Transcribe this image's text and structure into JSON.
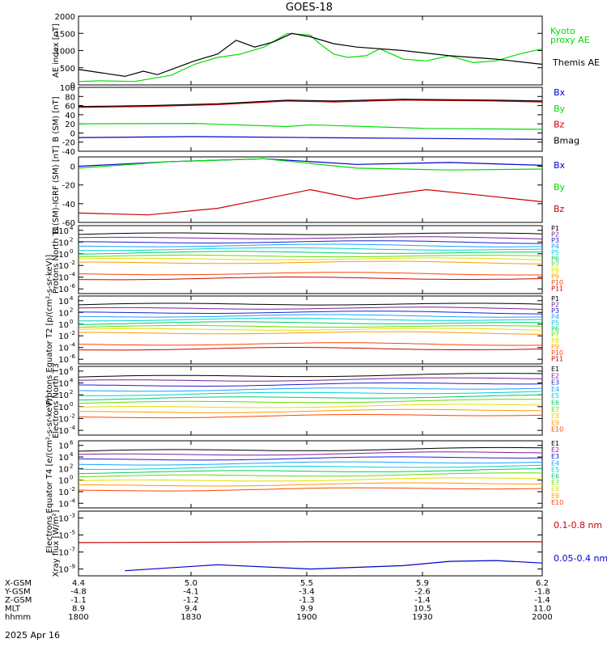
{
  "title": "GOES-18",
  "date_label": "2025 Apr 16",
  "colors": {
    "green": "#00dd00",
    "red": "#cc0000",
    "blue": "#0000cc",
    "black": "#000000",
    "rainbow11": [
      "#000000",
      "#7a1fa2",
      "#2020d0",
      "#1aa3ff",
      "#00d0d0",
      "#00cc66",
      "#66dd00",
      "#e0e000",
      "#ff9900",
      "#ff4400",
      "#cc0000"
    ]
  },
  "footer": {
    "rows": [
      {
        "label": "X-GSM",
        "values": [
          "4.4",
          "5.0",
          "5.5",
          "5.9",
          "6.2"
        ]
      },
      {
        "label": "Y-GSM",
        "values": [
          "-4.8",
          "-4.1",
          "-3.4",
          "-2.6",
          "-1.8"
        ]
      },
      {
        "label": "Z-GSM",
        "values": [
          "-1.1",
          "-1.2",
          "-1.3",
          "-1.4",
          "-1.4"
        ]
      },
      {
        "label": "MLT",
        "values": [
          "8.9",
          "9.4",
          "9.9",
          "10.5",
          "11.0"
        ]
      },
      {
        "label": "hhmm",
        "values": [
          "1800",
          "1830",
          "1900",
          "1930",
          "2000"
        ]
      }
    ]
  },
  "chart_data": [
    {
      "type": "line",
      "ylabel": "AE index [nT]",
      "ylim": [
        0,
        2000
      ],
      "yticks": [
        "0",
        "500",
        "1000",
        "1500",
        "2000"
      ],
      "x_range": [
        "1800",
        "2000"
      ],
      "legend": [
        "Kyoto proxy AE",
        "Themis AE"
      ],
      "series": [
        {
          "name": "Kyoto proxy AE",
          "color": "green",
          "x": [
            0,
            0.05,
            0.12,
            0.2,
            0.25,
            0.3,
            0.35,
            0.4,
            0.45,
            0.5,
            0.52,
            0.55,
            0.58,
            0.62,
            0.65,
            0.7,
            0.75,
            0.8,
            0.85,
            0.9,
            0.95,
            1.0
          ],
          "y": [
            100,
            120,
            100,
            280,
            600,
            800,
            900,
            1100,
            1500,
            1450,
            1200,
            900,
            800,
            850,
            1050,
            750,
            700,
            850,
            650,
            700,
            900,
            1050
          ]
        },
        {
          "name": "Themis AE",
          "color": "black",
          "x": [
            0,
            0.05,
            0.1,
            0.14,
            0.17,
            0.2,
            0.25,
            0.3,
            0.34,
            0.38,
            0.42,
            0.46,
            0.5,
            0.55,
            0.6,
            0.7,
            0.8,
            0.9,
            1.0
          ],
          "y": [
            450,
            350,
            250,
            400,
            300,
            450,
            700,
            900,
            1300,
            1100,
            1250,
            1500,
            1400,
            1200,
            1100,
            1000,
            850,
            750,
            600
          ]
        }
      ]
    },
    {
      "type": "line",
      "ylabel": "B (SM) [nT]",
      "ylim": [
        -40,
        100
      ],
      "yticks": [
        "-40",
        "-20",
        "0",
        "20",
        "40",
        "60",
        "80",
        "100"
      ],
      "legend": [
        "Bx",
        "By",
        "Bz",
        "Bmag"
      ],
      "series": [
        {
          "name": "Bx",
          "color": "blue",
          "x": [
            0,
            0.25,
            0.5,
            0.75,
            1.0
          ],
          "y": [
            -10,
            -8,
            -10,
            -12,
            -14
          ]
        },
        {
          "name": "By",
          "color": "green",
          "x": [
            0,
            0.25,
            0.45,
            0.5,
            0.75,
            1.0
          ],
          "y": [
            20,
            21,
            14,
            18,
            10,
            8
          ]
        },
        {
          "name": "Bz",
          "color": "red",
          "x": [
            0,
            0.15,
            0.3,
            0.45,
            0.55,
            0.7,
            0.9,
            1.0
          ],
          "y": [
            56,
            58,
            62,
            70,
            68,
            72,
            70,
            68
          ]
        },
        {
          "name": "Bmag",
          "color": "black",
          "x": [
            0,
            0.15,
            0.3,
            0.45,
            0.55,
            0.7,
            0.9,
            1.0
          ],
          "y": [
            58,
            60,
            64,
            72,
            70,
            74,
            72,
            70
          ]
        }
      ]
    },
    {
      "type": "line",
      "ylabel": "B (SM)-IGRF (SM) [nT]",
      "ylim": [
        -60,
        10
      ],
      "yticks": [
        "-60",
        "-40",
        "-20",
        "0"
      ],
      "legend": [
        "Bx",
        "By",
        "Bz"
      ],
      "series": [
        {
          "name": "Bx",
          "color": "blue",
          "x": [
            0,
            0.2,
            0.4,
            0.6,
            0.8,
            1.0
          ],
          "y": [
            0,
            5,
            8,
            2,
            4,
            1
          ]
        },
        {
          "name": "By",
          "color": "green",
          "x": [
            0,
            0.2,
            0.4,
            0.6,
            0.8,
            1.0
          ],
          "y": [
            -2,
            5,
            8,
            -2,
            -4,
            -3
          ]
        },
        {
          "name": "Bz",
          "color": "red",
          "x": [
            0,
            0.15,
            0.3,
            0.45,
            0.5,
            0.6,
            0.75,
            0.85,
            1.0
          ],
          "y": [
            -50,
            -52,
            -45,
            -30,
            -25,
            -35,
            -25,
            -30,
            -38
          ]
        }
      ]
    },
    {
      "type": "line",
      "ylabel": "Protons North T1",
      "yscale": "log",
      "yticks": [
        "10^4",
        "10^2",
        "10^0",
        "10^-2",
        "10^-4",
        "10^-6"
      ],
      "legend": [
        "P1",
        "P2",
        "P3",
        "P4",
        "P5",
        "P6",
        "P7",
        "P8",
        "P9",
        "P10",
        "P11"
      ],
      "series_levels_log10": [
        3.3,
        2.6,
        1.9,
        1.3,
        0.7,
        0.1,
        -0.5,
        -1.0,
        -1.6,
        -3.5,
        -4.3
      ]
    },
    {
      "type": "line",
      "ylabel": "Protons Equator T2 [p/(cm²-s-sr-keV)]",
      "yscale": "log",
      "yticks": [
        "10^4",
        "10^2",
        "10^0",
        "10^-2",
        "10^-4",
        "10^-6"
      ],
      "legend": [
        "P1",
        "P2",
        "P3",
        "P4",
        "P5",
        "P6",
        "P7",
        "P8",
        "P9",
        "P10",
        "P11"
      ],
      "series_levels_log10": [
        3.3,
        2.6,
        1.9,
        1.3,
        0.7,
        0.1,
        -0.5,
        -1.0,
        -1.6,
        -3.5,
        -4.3
      ]
    },
    {
      "type": "line",
      "ylabel": "Electrons North T3",
      "yscale": "log",
      "yticks": [
        "10^6",
        "10^4",
        "10^2",
        "10^0",
        "10^-2",
        "10^-4"
      ],
      "legend": [
        "E1",
        "E2",
        "E3",
        "E4",
        "E5",
        "E6",
        "E7",
        "E8",
        "E9",
        "E10"
      ],
      "series_levels_log10": [
        5.0,
        4.3,
        3.5,
        2.7,
        2.0,
        1.3,
        0.6,
        -0.2,
        -1.0,
        -1.8
      ]
    },
    {
      "type": "line",
      "ylabel": "Electrons Equator T4 [e/(cm²-s-sr-keV)]",
      "yscale": "log",
      "yticks": [
        "10^6",
        "10^4",
        "10^2",
        "10^0",
        "10^-2",
        "10^-4"
      ],
      "legend": [
        "E1",
        "E2",
        "E3",
        "E4",
        "E5",
        "E6",
        "E7",
        "E8",
        "E9",
        "E10"
      ],
      "series_levels_log10": [
        5.0,
        4.3,
        3.5,
        2.7,
        2.0,
        1.3,
        0.6,
        -0.2,
        -1.0,
        -1.8
      ]
    },
    {
      "type": "line",
      "ylabel": "Xray flux [W/m²]",
      "yscale": "log",
      "yticks": [
        "10^-3",
        "10^-5",
        "10^-7",
        "10^-9"
      ],
      "legend": [
        "0.1-0.8 nm",
        "0.05-0.4 nm"
      ],
      "series": [
        {
          "name": "0.1-0.8 nm",
          "color": "red",
          "x": [
            0,
            0.5,
            1.0
          ],
          "y": [
            -5.9,
            -5.8,
            -5.8
          ]
        },
        {
          "name": "0.05-0.4 nm",
          "color": "blue",
          "x": [
            0.1,
            0.3,
            0.5,
            0.6,
            0.7,
            0.8,
            0.9,
            1.0
          ],
          "y": [
            -9.2,
            -8.5,
            -9.0,
            -8.8,
            -8.6,
            -8.1,
            -8.0,
            -8.3
          ]
        }
      ]
    }
  ]
}
